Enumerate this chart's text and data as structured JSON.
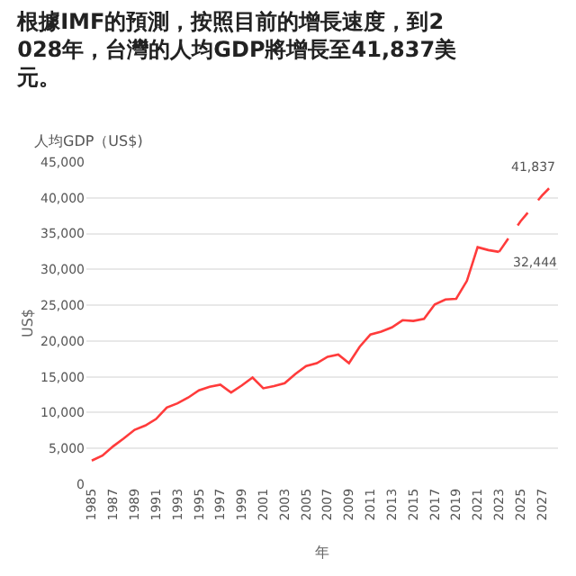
{
  "chart_data": {
    "type": "line",
    "title": "根據IMF的預測，按照目前的增長速度，到2028年，台灣的人均GDP將增長至41,837美元。",
    "subtitle": "人均GDP（US$)",
    "xlabel": "年",
    "ylabel": "US$",
    "series": [
      {
        "color": "#ff3b3b",
        "line_style": "solid",
        "x": [
          1985,
          1986,
          1987,
          1988,
          1989,
          1990,
          1991,
          1992,
          1993,
          1994,
          1995,
          1996,
          1997,
          1998,
          1999,
          2000,
          2001,
          2002,
          2003,
          2004,
          2005,
          2006,
          2007,
          2008,
          2009,
          2010,
          2011,
          2012,
          2013,
          2014,
          2015,
          2016,
          2017,
          2018,
          2019,
          2020,
          2021,
          2022,
          2023
        ],
        "values": [
          3300,
          4000,
          5300,
          6400,
          7600,
          8200,
          9100,
          10700,
          11300,
          12100,
          13100,
          13600,
          13900,
          12800,
          13800,
          14900,
          13400,
          13700,
          14100,
          15400,
          16500,
          16900,
          17800,
          18100,
          16900,
          19200,
          20900,
          21300,
          21900,
          22900,
          22800,
          23100,
          25100,
          25800,
          25900,
          28400,
          33100,
          32700,
          32444
        ]
      },
      {
        "color": "#ff3b3b",
        "line_style": "dashed",
        "x": [
          2023,
          2024,
          2025,
          2026,
          2027,
          2028
        ],
        "values": [
          32444,
          34600,
          36700,
          38500,
          40300,
          41837
        ]
      }
    ],
    "annotations": [
      {
        "text": "32,444",
        "x": 2023,
        "y": 32444
      },
      {
        "text": "41,837",
        "x": 2028,
        "y": 41837
      }
    ],
    "xlim": [
      1984.5,
      2028.5
    ],
    "xticks": [
      1985,
      1987,
      1989,
      1991,
      1993,
      1995,
      1997,
      1999,
      2001,
      2003,
      2005,
      2007,
      2009,
      2011,
      2013,
      2015,
      2017,
      2019,
      2021,
      2023,
      2025,
      2027
    ],
    "ylim": [
      0,
      45000
    ],
    "yticks": [
      {
        "value": 0,
        "label": "0"
      },
      {
        "value": 5000,
        "label": "5,000"
      },
      {
        "value": 10000,
        "label": "10,000"
      },
      {
        "value": 15000,
        "label": "15,000"
      },
      {
        "value": 20000,
        "label": "20,000"
      },
      {
        "value": 25000,
        "label": "25,000"
      },
      {
        "value": 30000,
        "label": "30,000"
      },
      {
        "value": 35000,
        "label": "35,000"
      },
      {
        "value": 40000,
        "label": "40,000"
      },
      {
        "value": 45000,
        "label": "45,000"
      }
    ],
    "grid": "y",
    "marker": "none"
  }
}
